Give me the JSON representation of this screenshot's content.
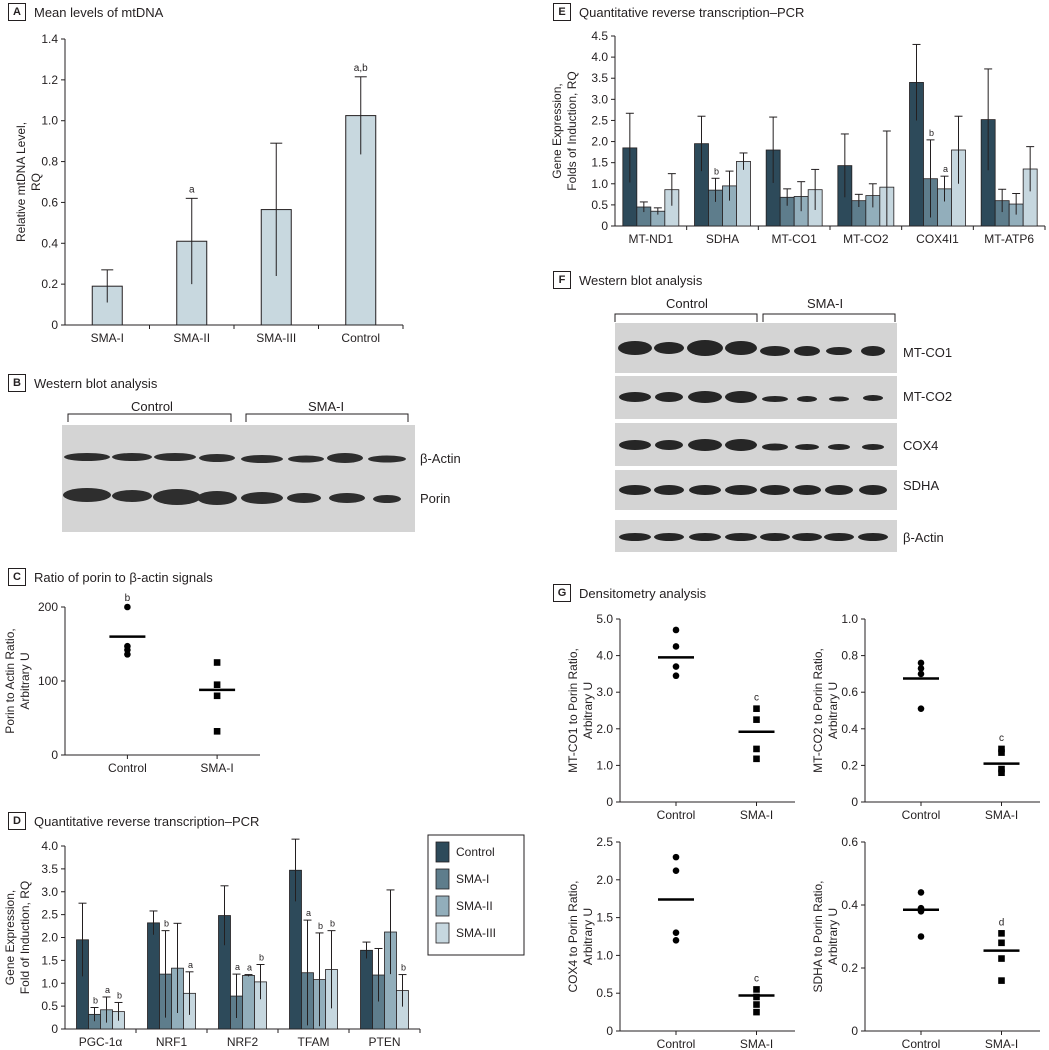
{
  "panels": {
    "A": {
      "label": "A",
      "title": "Mean levels of mtDNA"
    },
    "B": {
      "label": "B",
      "title": "Western blot analysis",
      "group_control": "Control",
      "group_sma": "SMA-I",
      "bands": [
        "β-Actin",
        "Porin"
      ]
    },
    "C": {
      "label": "C",
      "title": "Ratio of porin to β-actin signals"
    },
    "D": {
      "label": "D",
      "title": "Quantitative reverse transcription–PCR"
    },
    "E": {
      "label": "E",
      "title": "Quantitative reverse transcription–PCR"
    },
    "F": {
      "label": "F",
      "title": "Western blot analysis",
      "group_control": "Control",
      "group_sma": "SMA-I",
      "bands": [
        "MT-CO1",
        "MT-CO2",
        "COX4",
        "SDHA",
        "β-Actin"
      ]
    },
    "G": {
      "label": "G",
      "title": "Densitometry analysis"
    }
  },
  "colors": {
    "control": "#2d4a5a",
    "sma1": "#5e7d8c",
    "sma2": "#92aebb",
    "sma3": "#c6d7df",
    "bar_a": "#c8d8df"
  },
  "chart_data": [
    {
      "id": "A",
      "type": "bar",
      "title": "Mean levels of mtDNA",
      "ylabel": "Relative mtDNA Level, RQ",
      "xlabel": "",
      "ylim": [
        0,
        1.4
      ],
      "yticks": [
        "0",
        "0.2",
        "0.4",
        "0.6",
        "0.8",
        "1.0",
        "1.2",
        "1.4"
      ],
      "ytick_values": [
        0,
        0.2,
        0.4,
        0.6,
        0.8,
        1.0,
        1.2,
        1.4
      ],
      "categories": [
        "SMA-I",
        "SMA-II",
        "SMA-III",
        "Control"
      ],
      "values": [
        0.19,
        0.41,
        0.565,
        1.025
      ],
      "errors": [
        0.08,
        0.21,
        0.325,
        0.19
      ],
      "annotations": [
        "",
        "a",
        "",
        "a,b"
      ]
    },
    {
      "id": "C",
      "type": "scatter",
      "title": "Ratio of porin to β-actin signals",
      "ylabel": "Porin to Actin Ratio, Arbitrary U",
      "xlabel": "",
      "ylim": [
        0,
        200
      ],
      "yticks": [
        "0",
        "100",
        "200"
      ],
      "ytick_values": [
        0,
        100,
        200
      ],
      "categories": [
        "Control",
        "SMA-I"
      ],
      "means": [
        160,
        88
      ],
      "points": [
        [
          200,
          147,
          142,
          136
        ],
        [
          125,
          95,
          80,
          32
        ]
      ],
      "markers": [
        "circle",
        "square"
      ],
      "annotations": [
        "b",
        ""
      ]
    },
    {
      "id": "D",
      "type": "bar",
      "title": "Quantitative reverse transcription–PCR",
      "ylabel": "Gene Expression, Fold of Induction, RQ",
      "xlabel": "",
      "ylim": [
        0,
        4.0
      ],
      "yticks": [
        "0",
        "0.5",
        "1.0",
        "1.5",
        "2.0",
        "2.5",
        "3.0",
        "3.5",
        "4.0"
      ],
      "ytick_values": [
        0,
        0.5,
        1.0,
        1.5,
        2.0,
        2.5,
        3.0,
        3.5,
        4.0
      ],
      "categories": [
        "PGC-1α",
        "NRF1",
        "NRF2",
        "TFAM",
        "PTEN"
      ],
      "series": [
        {
          "name": "Control",
          "values": [
            1.95,
            2.32,
            2.48,
            3.47,
            1.72
          ],
          "errors": [
            0.8,
            0.26,
            0.65,
            0.68,
            0.18
          ],
          "annotations": [
            "",
            "",
            "",
            "",
            ""
          ]
        },
        {
          "name": "SMA-I",
          "values": [
            0.32,
            1.2,
            0.72,
            1.23,
            1.18
          ],
          "errors": [
            0.15,
            0.95,
            0.48,
            1.15,
            0.58
          ],
          "annotations": [
            "b",
            "b",
            "a",
            "a",
            ""
          ]
        },
        {
          "name": "SMA-II",
          "values": [
            0.42,
            1.33,
            1.17,
            1.08,
            2.12
          ],
          "errors": [
            0.28,
            0.98,
            0.02,
            1.02,
            0.92
          ],
          "annotations": [
            "a",
            "",
            "a",
            "b",
            ""
          ]
        },
        {
          "name": "SMA-III",
          "values": [
            0.38,
            0.78,
            1.03,
            1.3,
            0.84
          ],
          "errors": [
            0.2,
            0.47,
            0.38,
            0.85,
            0.35
          ],
          "annotations": [
            "b",
            "a",
            "b",
            "b",
            "b"
          ]
        }
      ],
      "legend": [
        "Control",
        "SMA-I",
        "SMA-II",
        "SMA-III"
      ]
    },
    {
      "id": "E",
      "type": "bar",
      "title": "Quantitative reverse transcription–PCR",
      "ylabel": "Gene Expression, Folds of Induction, RQ",
      "xlabel": "",
      "ylim": [
        0,
        4.5
      ],
      "yticks": [
        "0",
        "0.5",
        "1.0",
        "1.5",
        "2.0",
        "2.5",
        "3.0",
        "3.5",
        "4.0",
        "4.5"
      ],
      "ytick_values": [
        0,
        0.5,
        1.0,
        1.5,
        2.0,
        2.5,
        3.0,
        3.5,
        4.0,
        4.5
      ],
      "categories": [
        "MT-ND1",
        "SDHA",
        "MT-CO1",
        "MT-CO2",
        "COX4I1",
        "MT-ATP6"
      ],
      "series": [
        {
          "name": "Control",
          "values": [
            1.85,
            1.95,
            1.8,
            1.43,
            3.4,
            2.52
          ],
          "errors": [
            0.82,
            0.65,
            0.78,
            0.75,
            0.9,
            1.2
          ],
          "annotations": [
            "",
            "",
            "",
            "",
            "",
            ""
          ]
        },
        {
          "name": "SMA-I",
          "values": [
            0.45,
            0.85,
            0.68,
            0.6,
            1.12,
            0.6
          ],
          "errors": [
            0.12,
            0.28,
            0.2,
            0.15,
            0.92,
            0.27
          ],
          "annotations": [
            "",
            "b",
            "",
            "",
            "b",
            ""
          ]
        },
        {
          "name": "SMA-II",
          "values": [
            0.35,
            0.95,
            0.7,
            0.72,
            0.88,
            0.52
          ],
          "errors": [
            0.08,
            0.35,
            0.35,
            0.28,
            0.3,
            0.25
          ],
          "annotations": [
            "",
            "",
            "",
            "",
            "a",
            ""
          ]
        },
        {
          "name": "SMA-III",
          "values": [
            0.86,
            1.53,
            0.86,
            0.92,
            1.8,
            1.35
          ],
          "errors": [
            0.38,
            0.2,
            0.48,
            1.33,
            0.8,
            0.53
          ],
          "annotations": [
            "",
            "",
            "",
            "",
            "",
            ""
          ]
        }
      ]
    },
    {
      "id": "G1",
      "type": "scatter",
      "ylabel": "MT-CO1 to Porin Ratio, Arbitrary U",
      "xlabel": "",
      "ylim": [
        0,
        5.0
      ],
      "yticks": [
        "0",
        "1.0",
        "2.0",
        "3.0",
        "4.0",
        "5.0"
      ],
      "ytick_values": [
        0,
        1.0,
        2.0,
        3.0,
        4.0,
        5.0
      ],
      "categories": [
        "Control",
        "SMA-I"
      ],
      "means": [
        3.95,
        1.92
      ],
      "points": [
        [
          4.7,
          4.25,
          3.7,
          3.45
        ],
        [
          2.55,
          2.25,
          1.45,
          1.18
        ]
      ],
      "markers": [
        "circle",
        "square"
      ],
      "annotations": [
        "",
        "c"
      ]
    },
    {
      "id": "G2",
      "type": "scatter",
      "ylabel": "MT-CO2 to Porin Ratio, Arbitrary U",
      "xlabel": "",
      "ylim": [
        0,
        1.0
      ],
      "yticks": [
        "0",
        "0.2",
        "0.4",
        "0.6",
        "0.8",
        "1.0"
      ],
      "ytick_values": [
        0,
        0.2,
        0.4,
        0.6,
        0.8,
        1.0
      ],
      "categories": [
        "Control",
        "SMA-I"
      ],
      "means": [
        0.675,
        0.21
      ],
      "points": [
        [
          0.76,
          0.73,
          0.7,
          0.51
        ],
        [
          0.29,
          0.27,
          0.18,
          0.16
        ]
      ],
      "markers": [
        "circle",
        "square"
      ],
      "annotations": [
        "",
        "c"
      ]
    },
    {
      "id": "G3",
      "type": "scatter",
      "ylabel": "COX4 to Porin Ratio, Arbitrary U",
      "xlabel": "",
      "ylim": [
        0,
        2.5
      ],
      "yticks": [
        "0",
        "0.5",
        "1.0",
        "1.5",
        "2.0",
        "2.5"
      ],
      "ytick_values": [
        0,
        0.5,
        1.0,
        1.5,
        2.0,
        2.5
      ],
      "categories": [
        "Control",
        "SMA-I"
      ],
      "means": [
        1.74,
        0.47
      ],
      "points": [
        [
          2.3,
          2.12,
          1.3,
          1.2
        ],
        [
          0.55,
          0.45,
          0.35,
          0.25
        ]
      ],
      "markers": [
        "circle",
        "square"
      ],
      "annotations": [
        "",
        "c"
      ]
    },
    {
      "id": "G4",
      "type": "scatter",
      "ylabel": "SDHA to Porin Ratio, Arbitrary U",
      "xlabel": "",
      "ylim": [
        0,
        0.6
      ],
      "yticks": [
        "0",
        "0.2",
        "0.4",
        "0.6"
      ],
      "ytick_values": [
        0,
        0.2,
        0.4,
        0.6
      ],
      "categories": [
        "Control",
        "SMA-I"
      ],
      "means": [
        0.385,
        0.255
      ],
      "points": [
        [
          0.44,
          0.39,
          0.38,
          0.3
        ],
        [
          0.31,
          0.28,
          0.23,
          0.16
        ]
      ],
      "markers": [
        "circle",
        "square"
      ],
      "annotations": [
        "",
        "d"
      ]
    }
  ]
}
